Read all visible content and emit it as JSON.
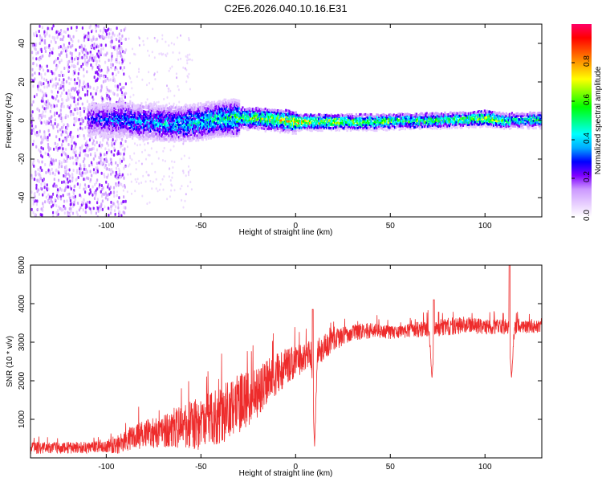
{
  "page": {
    "title": "C2E6.2026.040.10.16.E31"
  },
  "chart_data": [
    {
      "type": "heatmap",
      "xlabel": "Height of straight line (km)",
      "ylabel": "Frequency (Hz)",
      "xlim": [
        -140,
        130
      ],
      "ylim": [
        -50,
        50
      ],
      "xticks": [
        -100,
        -50,
        0,
        50,
        100
      ],
      "yticks": [
        -40,
        -20,
        0,
        20,
        40
      ],
      "colorbar": {
        "label": "Normalized spectral amplitude",
        "range": [
          0.0,
          1.0
        ],
        "ticks": [
          0.0,
          0.2,
          0.4,
          0.6,
          0.8
        ],
        "tick_labels": [
          "0.0",
          "0.2",
          "0.4",
          "0.6",
          "0.8"
        ],
        "colors": [
          "#ffffff",
          "#e6ccff",
          "#cc99ff",
          "#8000ff",
          "#0000ff",
          "#00aaff",
          "#00ffff",
          "#00ff80",
          "#00ff00",
          "#80ff00",
          "#ffff00",
          "#ffaa00",
          "#ff5500",
          "#ff0000",
          "#ff0066"
        ]
      },
      "band_profile": {
        "heights_km": [
          -140,
          -110,
          -100,
          -90,
          -80,
          -70,
          -60,
          -50,
          -40,
          -30,
          -20,
          -10,
          0,
          10,
          20,
          40,
          60,
          80,
          90,
          100,
          110,
          120,
          130
        ],
        "center_hz": [
          0,
          1,
          1,
          1,
          0,
          -1,
          -1,
          0,
          1.5,
          2,
          2,
          1,
          0,
          0,
          0,
          0,
          0.5,
          1,
          1.5,
          2,
          0.5,
          1,
          1
        ],
        "peak_amplitude": [
          0.25,
          0.28,
          0.35,
          0.4,
          0.42,
          0.45,
          0.48,
          0.5,
          0.55,
          0.62,
          0.7,
          0.75,
          0.85,
          0.8,
          0.75,
          0.7,
          0.65,
          0.65,
          0.7,
          0.8,
          0.6,
          0.55,
          0.55
        ]
      },
      "scatter_region": {
        "x_range_km": [
          -140,
          -90
        ],
        "y_range_hz": [
          -50,
          50
        ],
        "amplitude": 0.15
      }
    },
    {
      "type": "line",
      "xlabel": "Height of straight line (km)",
      "ylabel": "SNR (10 * v/v)",
      "xlim": [
        -140,
        130
      ],
      "ylim": [
        0,
        5000
      ],
      "xticks": [
        -100,
        -50,
        0,
        50,
        100
      ],
      "yticks": [
        1000,
        2000,
        3000,
        4000,
        5000
      ],
      "color": "#ee2b2b",
      "trend": {
        "x": [
          -140,
          -110,
          -100,
          -95,
          -90,
          -80,
          -70,
          -60,
          -50,
          -40,
          -30,
          -20,
          -10,
          0,
          10,
          20,
          30,
          40,
          50,
          60,
          70,
          80,
          90,
          100,
          110,
          120,
          130
        ],
        "y": [
          250,
          270,
          300,
          350,
          450,
          600,
          700,
          800,
          900,
          1100,
          1400,
          1700,
          2200,
          2500,
          2700,
          3050,
          3250,
          3300,
          3250,
          3300,
          3350,
          3400,
          3450,
          3400,
          3400,
          3400,
          3400
        ],
        "noise": [
          150,
          150,
          170,
          250,
          300,
          380,
          450,
          550,
          700,
          750,
          800,
          650,
          550,
          420,
          380,
          280,
          220,
          200,
          180,
          180,
          220,
          230,
          220,
          200,
          200,
          170,
          170
        ]
      },
      "dips": [
        {
          "x": 10,
          "y": 300
        },
        {
          "x": 72,
          "y": 2050
        },
        {
          "x": 114,
          "y": 2050
        }
      ],
      "spikes": [
        {
          "x": 9,
          "y": 3850
        },
        {
          "x": 73,
          "y": 4100
        },
        {
          "x": 113,
          "y": 5000
        }
      ]
    }
  ]
}
